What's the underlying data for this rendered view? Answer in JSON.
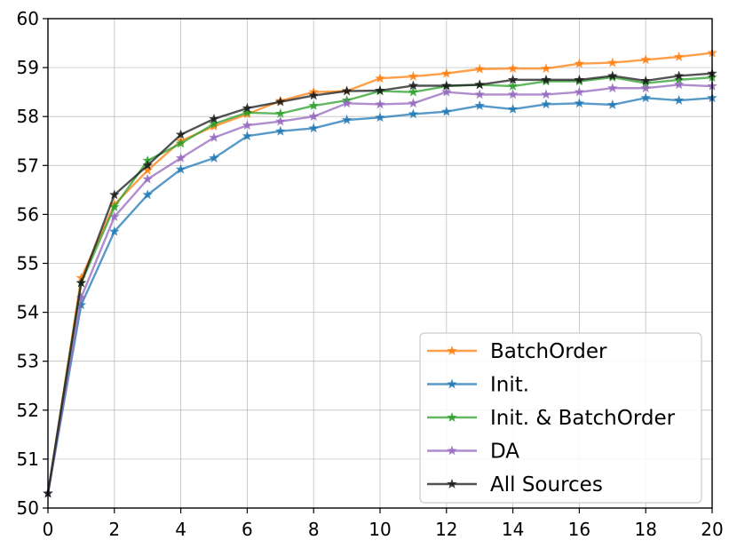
{
  "chart_data": {
    "type": "line",
    "title": "",
    "xlabel": "",
    "ylabel": "",
    "xlim": [
      0,
      20
    ],
    "ylim": [
      50,
      60
    ],
    "xticks": [
      0,
      2,
      4,
      6,
      8,
      10,
      12,
      14,
      16,
      18,
      20
    ],
    "yticks": [
      50,
      51,
      52,
      53,
      54,
      55,
      56,
      57,
      58,
      59,
      60
    ],
    "grid": true,
    "legend_position": "lower-right",
    "x": [
      0,
      1,
      2,
      3,
      4,
      5,
      6,
      7,
      8,
      9,
      10,
      11,
      12,
      13,
      14,
      15,
      16,
      17,
      18,
      19,
      20
    ],
    "series": [
      {
        "name": "BatchOrder",
        "color": "#ff7f0e",
        "marker": "star",
        "values": [
          50.3,
          54.7,
          56.2,
          56.9,
          57.5,
          57.8,
          58.05,
          58.32,
          58.5,
          58.52,
          58.78,
          58.82,
          58.88,
          58.97,
          58.98,
          58.98,
          59.08,
          59.1,
          59.16,
          59.22,
          59.3
        ]
      },
      {
        "name": "Init.",
        "color": "#1f77b4",
        "marker": "star",
        "values": [
          50.3,
          54.15,
          55.65,
          56.4,
          56.92,
          57.15,
          57.6,
          57.7,
          57.76,
          57.93,
          57.98,
          58.05,
          58.1,
          58.22,
          58.15,
          58.25,
          58.27,
          58.24,
          58.38,
          58.33,
          58.38
        ]
      },
      {
        "name": "Init. & BatchOrder",
        "color": "#2ca02c",
        "marker": "star",
        "values": [
          50.3,
          54.6,
          56.15,
          57.1,
          57.45,
          57.85,
          58.08,
          58.06,
          58.22,
          58.33,
          58.52,
          58.5,
          58.62,
          58.65,
          58.62,
          58.72,
          58.72,
          58.8,
          58.68,
          58.75,
          58.8
        ]
      },
      {
        "name": "DA",
        "color": "#9467bd",
        "marker": "star",
        "values": [
          50.3,
          54.3,
          55.95,
          56.72,
          57.15,
          57.57,
          57.82,
          57.9,
          58.0,
          58.27,
          58.25,
          58.27,
          58.5,
          58.45,
          58.45,
          58.45,
          58.5,
          58.58,
          58.58,
          58.65,
          58.62
        ]
      },
      {
        "name": "All Sources",
        "color": "#1a1a1a",
        "marker": "star",
        "values": [
          50.3,
          54.6,
          56.4,
          57.0,
          57.63,
          57.95,
          58.17,
          58.3,
          58.43,
          58.52,
          58.53,
          58.63,
          58.63,
          58.65,
          58.75,
          58.75,
          58.75,
          58.83,
          58.73,
          58.83,
          58.88
        ]
      }
    ]
  }
}
